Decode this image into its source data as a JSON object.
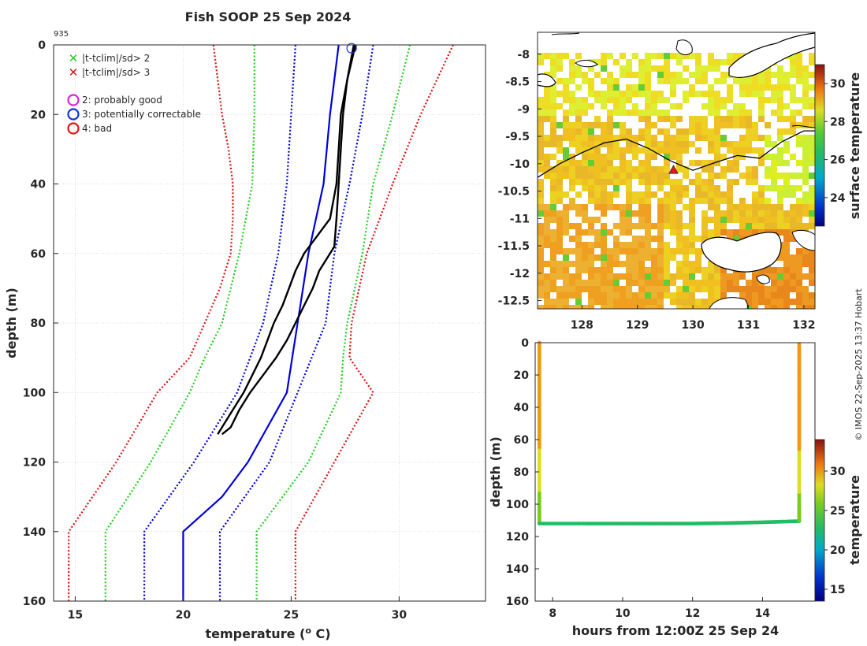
{
  "title": "Fish SOOP 25 Sep 2024",
  "profile_id": "935",
  "legend": {
    "items": [
      {
        "symbol": "x",
        "color": "#22cc22",
        "label": "|t-tclim|/sd> 2"
      },
      {
        "symbol": "x",
        "color": "#dd1111",
        "label": "|t-tclim|/sd> 3"
      },
      {
        "symbol": "o",
        "color": "#dd22dd",
        "label": "2: probably good"
      },
      {
        "symbol": "o",
        "color": "#1133dd",
        "label": "3: potentially correctable"
      },
      {
        "symbol": "o",
        "color": "#ee1111",
        "label": "4: bad"
      }
    ]
  },
  "credit": "© IMOS 22-Sep-2025 13:37 Hobart",
  "colors": {
    "clim_mean": "#0000dd",
    "sd1": "#0000dd",
    "sd2": "#22cc22",
    "sd3": "#dd1111",
    "profile": "#000000"
  },
  "chart_data": [
    {
      "type": "line",
      "name": "profile",
      "xlabel": "temperature (",
      "xlabel_sup": "o",
      "xlabel_end": " C)",
      "ylabel": "depth (m)",
      "xlim": [
        14,
        34
      ],
      "ylim": [
        160,
        0
      ],
      "xticks": [
        15,
        20,
        25,
        30
      ],
      "yticks": [
        0,
        20,
        40,
        60,
        80,
        100,
        120,
        140,
        160
      ],
      "grid": true,
      "flag_marker": {
        "temp": 27.8,
        "depth": 0.5,
        "flag": "3: potentially correctable"
      },
      "series": [
        {
          "name": "climatology mean",
          "style": "solid",
          "color": "#0000dd",
          "depth": [
            0,
            20,
            40,
            60,
            80,
            100,
            120,
            130,
            140,
            160
          ],
          "temp": [
            27.2,
            26.8,
            26.5,
            25.8,
            25.3,
            24.8,
            23.0,
            21.8,
            20.0,
            20.0
          ]
        },
        {
          "name": "mean -1sd",
          "style": "dotted",
          "color": "#0000dd",
          "depth": [
            0,
            20,
            40,
            60,
            80,
            100,
            120,
            140,
            160
          ],
          "temp": [
            25.2,
            25.0,
            24.8,
            24.4,
            23.7,
            22.5,
            20.5,
            18.2,
            18.2
          ]
        },
        {
          "name": "mean +1sd",
          "style": "dotted",
          "color": "#0000dd",
          "depth": [
            0,
            20,
            40,
            60,
            80,
            100,
            120,
            140,
            160
          ],
          "temp": [
            28.8,
            28.3,
            27.7,
            27.0,
            26.6,
            25.3,
            24.0,
            21.7,
            21.7
          ]
        },
        {
          "name": "mean -2sd",
          "style": "dotted",
          "color": "#22cc22",
          "depth": [
            0,
            20,
            40,
            60,
            80,
            90,
            100,
            120,
            140,
            160
          ],
          "temp": [
            23.3,
            23.3,
            23.2,
            22.6,
            21.8,
            21.0,
            20.3,
            18.5,
            16.4,
            16.4
          ]
        },
        {
          "name": "mean +2sd",
          "style": "dotted",
          "color": "#22cc22",
          "depth": [
            0,
            20,
            40,
            60,
            80,
            90,
            100,
            120,
            140,
            160
          ],
          "temp": [
            30.5,
            29.7,
            28.8,
            28.3,
            27.6,
            27.4,
            27.3,
            25.8,
            23.4,
            23.4
          ]
        },
        {
          "name": "mean -3sd",
          "style": "dotted",
          "color": "#dd1111",
          "depth": [
            0,
            20,
            30,
            40,
            50,
            60,
            70,
            80,
            90,
            100,
            120,
            140,
            160
          ],
          "temp": [
            21.4,
            21.8,
            22.1,
            22.3,
            22.3,
            22.2,
            21.7,
            21.0,
            20.3,
            18.8,
            16.9,
            14.7,
            14.7
          ]
        },
        {
          "name": "mean +3sd",
          "style": "dotted",
          "color": "#dd1111",
          "depth": [
            0,
            20,
            40,
            60,
            80,
            90,
            100,
            120,
            140,
            160
          ],
          "temp": [
            32.5,
            31.0,
            29.7,
            28.5,
            27.8,
            27.7,
            28.8,
            27.0,
            25.2,
            25.2
          ]
        },
        {
          "name": "observed profile (down)",
          "style": "solid",
          "color": "#000000",
          "depth": [
            0,
            10,
            20,
            30,
            40,
            50,
            55,
            60,
            65,
            70,
            75,
            80,
            85,
            90,
            95,
            100,
            105,
            110,
            112
          ],
          "temp": [
            27.9,
            27.6,
            27.3,
            27.2,
            27.1,
            26.8,
            26.2,
            25.6,
            25.2,
            24.9,
            24.6,
            24.2,
            23.9,
            23.6,
            23.2,
            22.8,
            22.3,
            21.8,
            21.6
          ]
        },
        {
          "name": "observed profile (up)",
          "style": "solid",
          "color": "#000000",
          "depth": [
            112,
            110,
            105,
            100,
            95,
            90,
            85,
            80,
            75,
            70,
            65,
            62,
            58,
            50,
            40,
            30,
            20,
            10,
            2,
            0
          ],
          "temp": [
            21.8,
            22.2,
            22.6,
            23.1,
            23.7,
            24.3,
            24.8,
            25.2,
            25.6,
            26.0,
            26.3,
            26.6,
            27.0,
            27.1,
            27.2,
            27.3,
            27.4,
            27.6,
            27.9,
            28.0
          ]
        }
      ]
    },
    {
      "type": "heatmap",
      "name": "surface temperature map",
      "xlim": [
        127.2,
        132.2
      ],
      "ylim": [
        -12.65,
        -7.6
      ],
      "xticks": [
        128,
        129,
        130,
        131,
        132
      ],
      "yticks": [
        -8,
        -8.5,
        -9,
        -9.5,
        -10,
        -10.5,
        -11,
        -11.5,
        -12,
        -12.5
      ],
      "colorbar": {
        "label": "surface temperature",
        "range": [
          22.5,
          31
        ],
        "ticks": [
          24,
          26,
          28,
          30
        ]
      },
      "ship_position": {
        "lon": 129.65,
        "lat": -10.12
      },
      "track": {
        "lon": [
          127.2,
          127.6,
          128.0,
          128.4,
          128.8,
          129.2,
          129.6,
          130.0,
          130.4,
          130.8,
          131.2,
          131.6,
          132.0,
          132.2
        ],
        "lat": [
          -10.25,
          -10.0,
          -9.8,
          -9.62,
          -9.55,
          -9.72,
          -9.95,
          -10.12,
          -9.98,
          -9.85,
          -9.9,
          -9.6,
          -9.4,
          -9.4
        ]
      }
    },
    {
      "type": "scatter",
      "name": "depth vs time",
      "xlabel": "hours from 12:00Z 25 Sep 24",
      "ylabel": "depth (m)",
      "xlim": [
        7.5,
        15.5
      ],
      "ylim": [
        160,
        0
      ],
      "xticks": [
        8,
        10,
        12,
        14
      ],
      "yticks": [
        0,
        20,
        40,
        60,
        80,
        100,
        120,
        140,
        160
      ],
      "colorbar": {
        "label": "temperature",
        "range": [
          13.5,
          34
        ],
        "ticks": [
          15,
          20,
          25,
          30
        ]
      },
      "series": [
        {
          "name": "descent",
          "x": [
            7.62,
            7.62,
            7.62,
            7.62,
            7.62,
            7.62,
            7.62
          ],
          "depth": [
            0,
            20,
            40,
            60,
            80,
            100,
            112
          ],
          "temp": [
            28,
            28,
            27.5,
            27,
            25.5,
            24,
            22
          ]
        },
        {
          "name": "bottom",
          "x": [
            7.62,
            9,
            10,
            11,
            12,
            13,
            14,
            15.05
          ],
          "depth": [
            112,
            112,
            112,
            112,
            112,
            111.7,
            111.2,
            110.5
          ],
          "temp": [
            22,
            22,
            22,
            22,
            22,
            22,
            22,
            22
          ]
        },
        {
          "name": "ascent",
          "x": [
            15.05,
            15.05,
            15.05,
            15.05,
            15.05,
            15.05,
            15.05
          ],
          "depth": [
            110.5,
            100,
            80,
            60,
            40,
            20,
            0
          ],
          "temp": [
            22,
            24,
            25.5,
            27,
            27.5,
            28,
            28
          ]
        }
      ]
    }
  ]
}
